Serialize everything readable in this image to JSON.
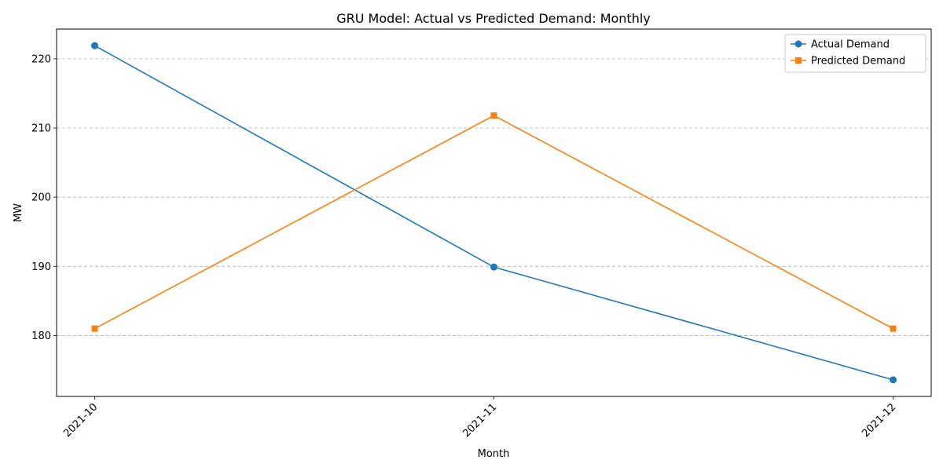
{
  "chart_data": {
    "type": "line",
    "title": "GRU Model: Actual vs Predicted Demand: Monthly",
    "xlabel": "Month",
    "ylabel": "MW",
    "categories": [
      "2021-10",
      "2021-11",
      "2021-12"
    ],
    "series": [
      {
        "name": "Actual Demand",
        "values": [
          221.9,
          189.9,
          173.6
        ],
        "color": "#1f77b4",
        "marker": "circle"
      },
      {
        "name": "Predicted Demand",
        "values": [
          181.0,
          211.8,
          181.0
        ],
        "color": "#ff7f0e",
        "marker": "square"
      }
    ],
    "ylim": [
      171.2,
      224.3
    ],
    "yticks": [
      180,
      190,
      200,
      210,
      220
    ],
    "grid": "horizontal-dashed",
    "legend": "top-right",
    "xtick_rotation": 45
  }
}
